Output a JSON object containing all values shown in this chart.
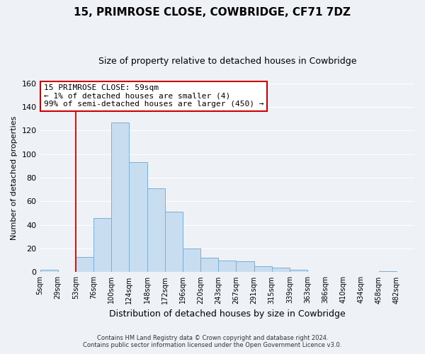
{
  "title": "15, PRIMROSE CLOSE, COWBRIDGE, CF71 7DZ",
  "subtitle": "Size of property relative to detached houses in Cowbridge",
  "xlabel": "Distribution of detached houses by size in Cowbridge",
  "ylabel": "Number of detached properties",
  "bar_color": "#c8ddf0",
  "bar_edge_color": "#7aafd4",
  "bin_labels": [
    "5sqm",
    "29sqm",
    "53sqm",
    "76sqm",
    "100sqm",
    "124sqm",
    "148sqm",
    "172sqm",
    "196sqm",
    "220sqm",
    "243sqm",
    "267sqm",
    "291sqm",
    "315sqm",
    "339sqm",
    "363sqm",
    "386sqm",
    "410sqm",
    "434sqm",
    "458sqm",
    "482sqm"
  ],
  "bar_heights": [
    2,
    0,
    13,
    46,
    127,
    93,
    71,
    51,
    20,
    12,
    10,
    9,
    5,
    4,
    2,
    0,
    0,
    0,
    0,
    1,
    0
  ],
  "ylim": [
    0,
    160
  ],
  "yticks": [
    0,
    20,
    40,
    60,
    80,
    100,
    120,
    140,
    160
  ],
  "vline_x_index": 2,
  "vline_color": "#cc0000",
  "annotation_line1": "15 PRIMROSE CLOSE: 59sqm",
  "annotation_line2": "← 1% of detached houses are smaller (4)",
  "annotation_line3": "99% of semi-detached houses are larger (450) →",
  "annotation_box_color": "#ffffff",
  "annotation_box_edge": "#cc0000",
  "footer_line1": "Contains HM Land Registry data © Crown copyright and database right 2024.",
  "footer_line2": "Contains public sector information licensed under the Open Government Licence v3.0.",
  "background_color": "#eef2f7",
  "grid_color": "#ffffff",
  "title_fontsize": 11,
  "subtitle_fontsize": 9,
  "ylabel_fontsize": 8,
  "xlabel_fontsize": 9,
  "tick_fontsize": 7,
  "annotation_fontsize": 8
}
